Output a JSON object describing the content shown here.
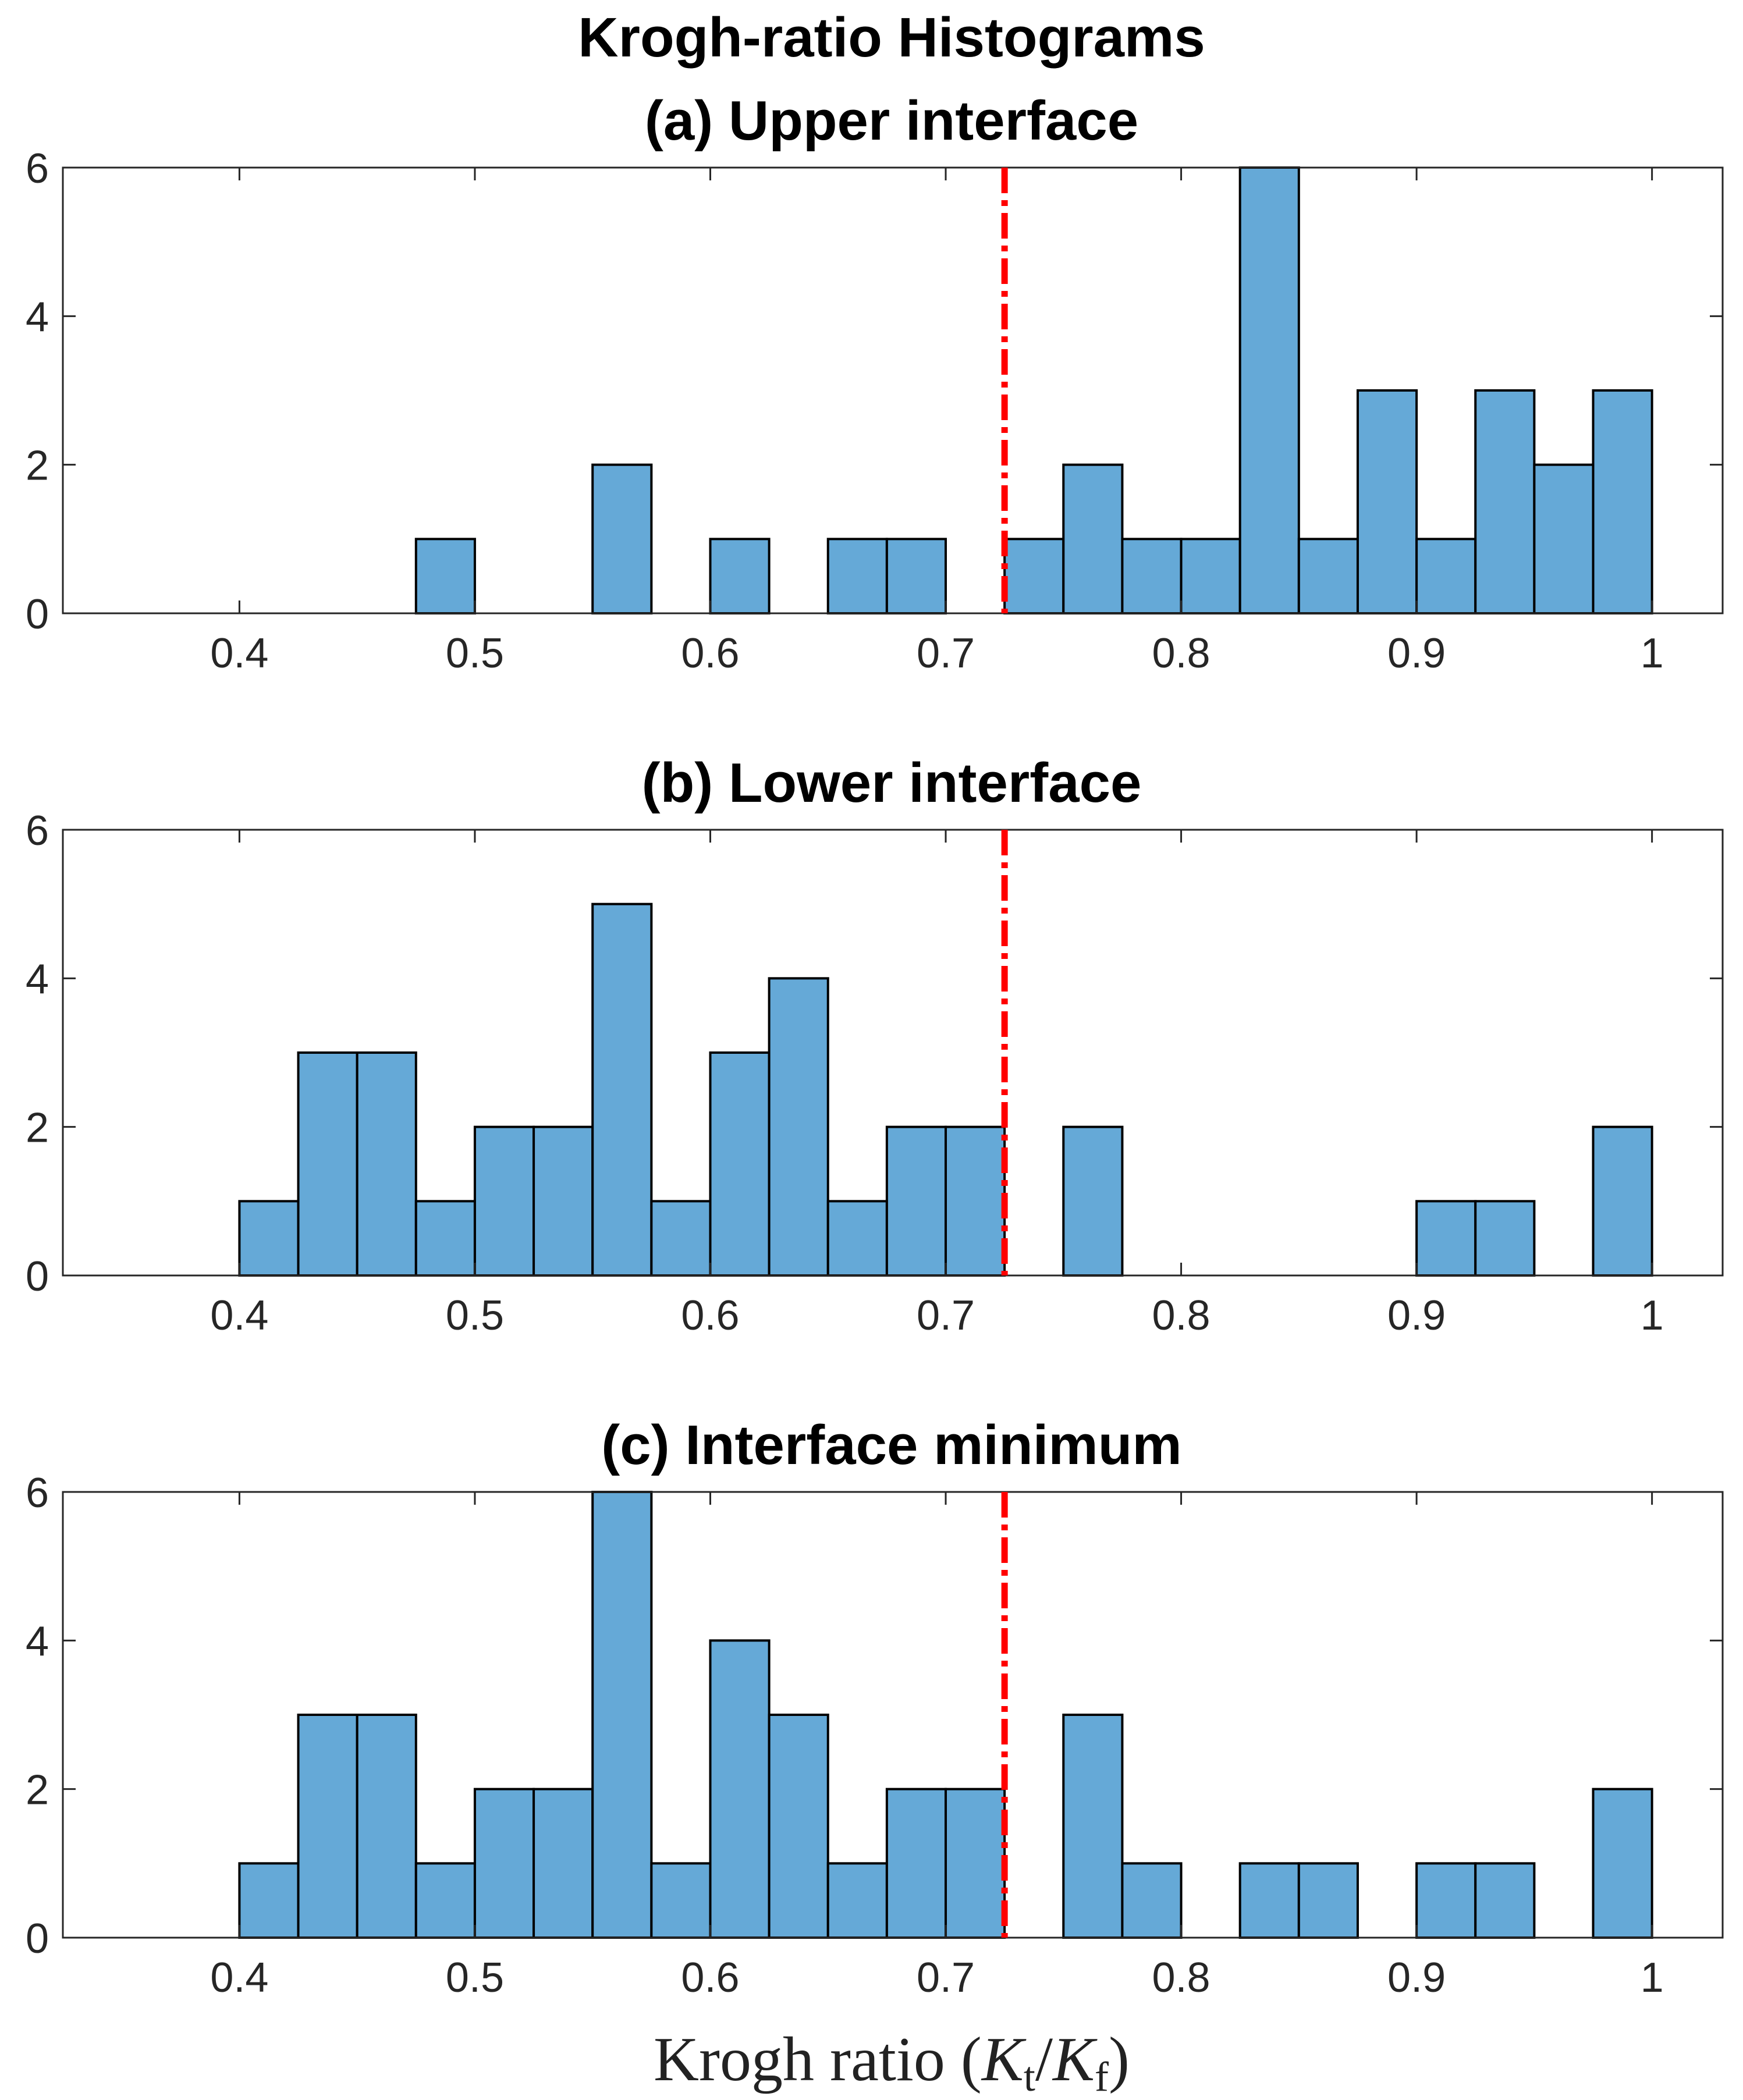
{
  "figure": {
    "title": "Krogh-ratio Histograms",
    "xlabel_main": "Krogh ratio (",
    "xlabel_K1": "K",
    "xlabel_sub1": "t",
    "xlabel_slash": "/",
    "xlabel_K2": "K",
    "xlabel_sub2": "f",
    "xlabel_close": ")",
    "bar_color": "#65a9d7",
    "edge_color": "#000000",
    "threshold_color": "#ff0000"
  },
  "chart_data": [
    {
      "type": "bar",
      "title": "(a) Upper interface",
      "bin_width": 0.025,
      "bin_starts": [
        0.475,
        0.55,
        0.6,
        0.65,
        0.675,
        0.725,
        0.75,
        0.775,
        0.8,
        0.825,
        0.85,
        0.875,
        0.9,
        0.925,
        0.95,
        0.975
      ],
      "counts": [
        1,
        2,
        1,
        1,
        1,
        1,
        2,
        1,
        1,
        6,
        1,
        3,
        1,
        3,
        2,
        3
      ],
      "xlim": [
        0.325,
        1.03
      ],
      "ylim": [
        0,
        6
      ],
      "xticks": [
        0.4,
        0.5,
        0.6,
        0.7,
        0.8,
        0.9,
        1
      ],
      "xtick_labels": [
        "0.4",
        "0.5",
        "0.6",
        "0.7",
        "0.8",
        "0.9",
        "1"
      ],
      "yticks": [
        0,
        2,
        4,
        6
      ],
      "ytick_labels": [
        "0",
        "2",
        "4",
        "6"
      ],
      "threshold": 0.725
    },
    {
      "type": "bar",
      "title": "(b) Lower interface",
      "bin_width": 0.025,
      "bin_starts": [
        0.4,
        0.425,
        0.45,
        0.475,
        0.5,
        0.525,
        0.55,
        0.575,
        0.6,
        0.625,
        0.65,
        0.675,
        0.7,
        0.75,
        0.9,
        0.925,
        0.975
      ],
      "counts": [
        1,
        3,
        3,
        1,
        2,
        2,
        5,
        1,
        3,
        4,
        1,
        2,
        2,
        2,
        1,
        1,
        2
      ],
      "xlim": [
        0.325,
        1.03
      ],
      "ylim": [
        0,
        6
      ],
      "xticks": [
        0.4,
        0.5,
        0.6,
        0.7,
        0.8,
        0.9,
        1
      ],
      "xtick_labels": [
        "0.4",
        "0.5",
        "0.6",
        "0.7",
        "0.8",
        "0.9",
        "1"
      ],
      "yticks": [
        0,
        2,
        4,
        6
      ],
      "ytick_labels": [
        "0",
        "2",
        "4",
        "6"
      ],
      "threshold": 0.725
    },
    {
      "type": "bar",
      "title": "(c) Interface minimum",
      "bin_width": 0.025,
      "bin_starts": [
        0.4,
        0.425,
        0.45,
        0.475,
        0.5,
        0.525,
        0.55,
        0.575,
        0.6,
        0.625,
        0.65,
        0.675,
        0.7,
        0.75,
        0.775,
        0.825,
        0.85,
        0.9,
        0.925,
        0.975
      ],
      "counts": [
        1,
        3,
        3,
        1,
        2,
        2,
        6,
        1,
        4,
        3,
        1,
        2,
        2,
        3,
        1,
        1,
        1,
        1,
        1,
        2
      ],
      "xlim": [
        0.325,
        1.03
      ],
      "ylim": [
        0,
        6
      ],
      "xticks": [
        0.4,
        0.5,
        0.6,
        0.7,
        0.8,
        0.9,
        1
      ],
      "xtick_labels": [
        "0.4",
        "0.5",
        "0.6",
        "0.7",
        "0.8",
        "0.9",
        "1"
      ],
      "yticks": [
        0,
        2,
        4,
        6
      ],
      "ytick_labels": [
        "0",
        "2",
        "4",
        "6"
      ],
      "threshold": 0.725
    }
  ]
}
